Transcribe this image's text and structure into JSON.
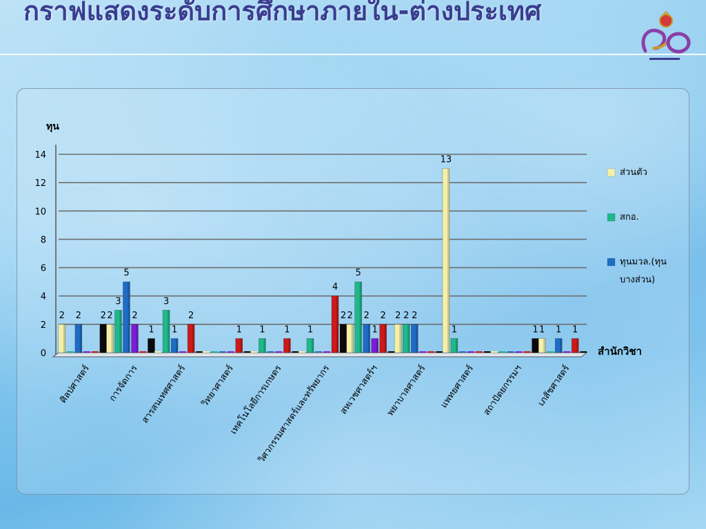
{
  "slide": {
    "title": "กราฟแสดงระดับการศึกษาภายใน-ต่างประเทศ"
  },
  "chart_data": {
    "type": "bar",
    "ylabel": "ทุน",
    "xlabel": "สำนักวิชา",
    "ylim": [
      0,
      14
    ],
    "yticks": [
      0,
      2,
      4,
      6,
      8,
      10,
      12,
      14
    ],
    "grid": true,
    "legend_position": "right",
    "categories": [
      "ศิลปศาสตร์",
      "การจัดการ",
      "สารสนเทศศาสตร์",
      "วิทยาศาสตร์",
      "เทคโนโลยีการเกษตร",
      "วิศวกรรมศาสตร์และทรัพยากร",
      "สหเวชศาสตร์ฯ",
      "พยาบาลศาสตร์",
      "แพทยศาสตร์",
      "สถาปัตยกรรมฯ",
      "เภสัชศาสตร์"
    ],
    "series": [
      {
        "name": "ส่วนตัว",
        "color": "#f4f0a8",
        "values": [
          2,
          2,
          0,
          0,
          0,
          0,
          2,
          2,
          13,
          0,
          1
        ]
      },
      {
        "name": "สกอ.",
        "color": "#1fb88a",
        "values": [
          0,
          3,
          3,
          0,
          1,
          1,
          5,
          2,
          1,
          0,
          0
        ]
      },
      {
        "name": "ทุนมวล.(ทุนบางส่วน)",
        "color": "#1f6cc4",
        "values": [
          2,
          5,
          1,
          0,
          0,
          0,
          2,
          2,
          0,
          0,
          1
        ]
      },
      {
        "name": "",
        "color": "#7a1ed6",
        "values": [
          0,
          2,
          0,
          0,
          0,
          0,
          1,
          0,
          0,
          0,
          0
        ]
      },
      {
        "name": "",
        "color": "#cc1a1a",
        "values": [
          0,
          0,
          2,
          1,
          1,
          4,
          2,
          0,
          0,
          0,
          1
        ]
      },
      {
        "name": "",
        "color": "#0a0a0a",
        "values": [
          2,
          1,
          0,
          0,
          0,
          2,
          0,
          0,
          0,
          1,
          0
        ]
      }
    ],
    "value_labels": [
      {
        "category": 0,
        "series": 0,
        "text": "2"
      },
      {
        "category": 0,
        "series": 2,
        "text": "2"
      },
      {
        "category": 0,
        "series": 5,
        "text": "2"
      },
      {
        "category": 1,
        "series": 0,
        "text": "2"
      },
      {
        "category": 1,
        "series": 1,
        "text": "3"
      },
      {
        "category": 1,
        "series": 2,
        "text": "5"
      },
      {
        "category": 1,
        "series": 3,
        "text": "2"
      },
      {
        "category": 1,
        "series": 5,
        "text": "1"
      },
      {
        "category": 2,
        "series": 1,
        "text": "3"
      },
      {
        "category": 2,
        "series": 2,
        "text": "1"
      },
      {
        "category": 2,
        "series": 4,
        "text": "2"
      },
      {
        "category": 3,
        "series": 4,
        "text": "1"
      },
      {
        "category": 4,
        "series": 1,
        "text": "1"
      },
      {
        "category": 4,
        "series": 4,
        "text": "1"
      },
      {
        "category": 5,
        "series": 1,
        "text": "1"
      },
      {
        "category": 5,
        "series": 4,
        "text": "4"
      },
      {
        "category": 5,
        "series": 5,
        "text": "2"
      },
      {
        "category": 6,
        "series": 0,
        "text": "2"
      },
      {
        "category": 6,
        "series": 1,
        "text": "5"
      },
      {
        "category": 6,
        "series": 2,
        "text": "2"
      },
      {
        "category": 6,
        "series": 3,
        "text": "1"
      },
      {
        "category": 6,
        "series": 4,
        "text": "2"
      },
      {
        "category": 7,
        "series": 0,
        "text": "2"
      },
      {
        "category": 7,
        "series": 1,
        "text": "2"
      },
      {
        "category": 7,
        "series": 2,
        "text": "2"
      },
      {
        "category": 8,
        "series": 0,
        "text": "13"
      },
      {
        "category": 8,
        "series": 1,
        "text": "1"
      },
      {
        "category": 9,
        "series": 5,
        "text": "1"
      },
      {
        "category": 10,
        "series": 0,
        "text": "1"
      },
      {
        "category": 10,
        "series": 2,
        "text": "1"
      },
      {
        "category": 10,
        "series": 4,
        "text": "1"
      }
    ]
  }
}
